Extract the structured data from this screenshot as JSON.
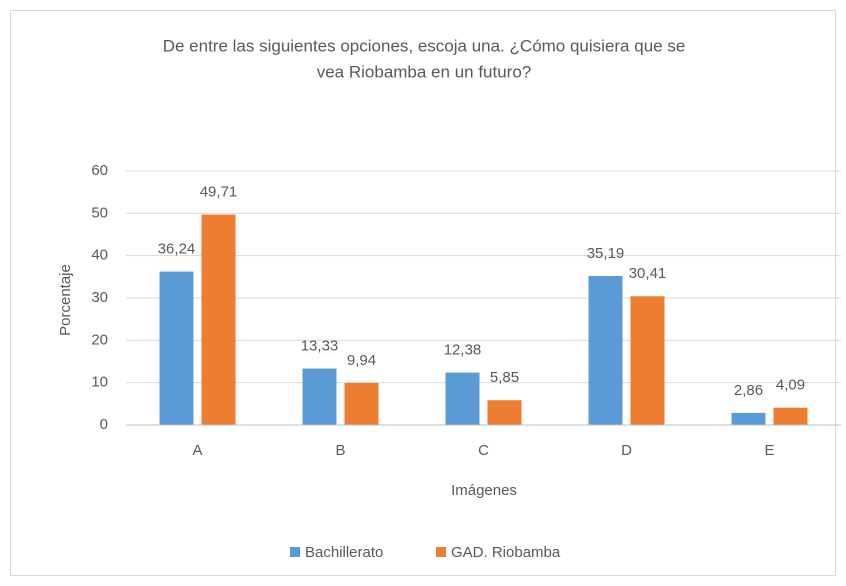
{
  "chart_data": {
    "type": "bar",
    "title": [
      "De entre las siguientes opciones, escoja una. ¿Cómo quisiera que se",
      "vea Riobamba en un futuro?"
    ],
    "x_label": "Imágenes",
    "y_label": "Porcentaje",
    "categories": [
      "A",
      "B",
      "C",
      "D",
      "E"
    ],
    "series": [
      {
        "name": "Bachillerato",
        "color": "#5b9bd5",
        "values": [
          36.24,
          13.33,
          12.38,
          35.19,
          2.86
        ],
        "value_labels": [
          "36,24",
          "13,33",
          "12,38",
          "35,19",
          "2,86"
        ]
      },
      {
        "name": "GAD. Riobamba",
        "color": "#ed7d31",
        "values": [
          49.71,
          9.94,
          5.85,
          30.41,
          4.09
        ],
        "value_labels": [
          "49,71",
          "9,94",
          "5,85",
          "30,41",
          "4,09"
        ]
      }
    ],
    "ylim": [
      0,
      60
    ],
    "yticks": [
      0,
      10,
      20,
      30,
      40,
      50,
      60
    ],
    "grid": true,
    "legend": "bottom"
  }
}
